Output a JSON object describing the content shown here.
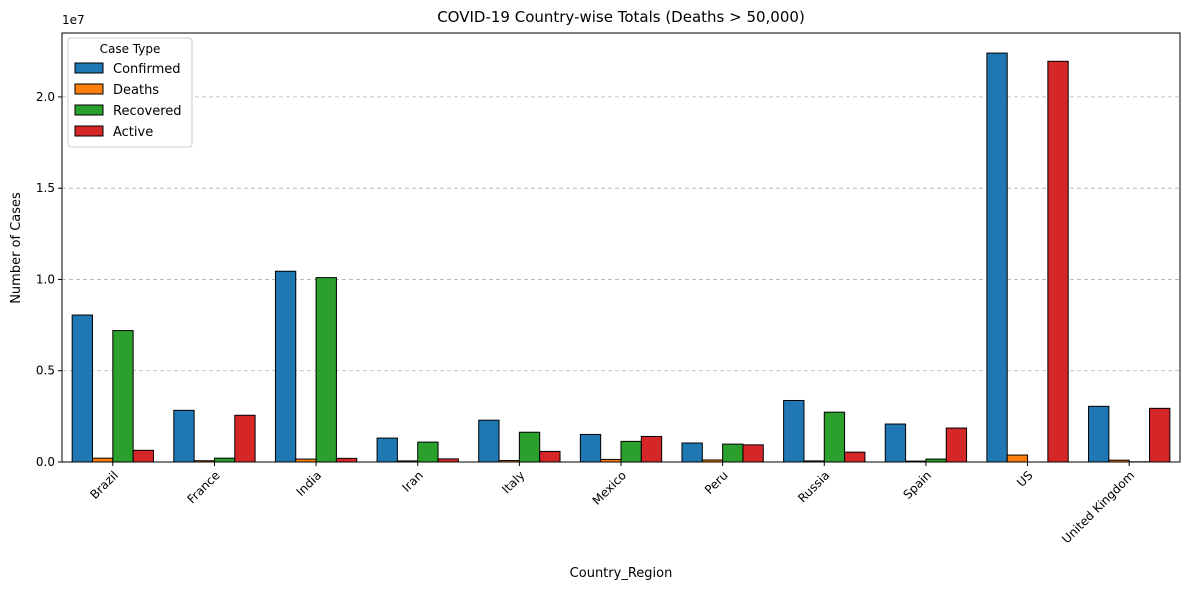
{
  "chart_data": {
    "type": "bar",
    "title": "COVID-19 Country-wise Totals (Deaths > 50,000)",
    "xlabel": "Country_Region",
    "ylabel": "Number of Cases",
    "y_offset_label": "1e7",
    "ylim": [
      0,
      23500000
    ],
    "yticks": [
      0,
      5000000,
      10000000,
      15000000,
      20000000
    ],
    "ytick_labels": [
      "0.0",
      "0.5",
      "1.0",
      "1.5",
      "2.0"
    ],
    "grid": "y",
    "legend_title": "Case Type",
    "legend_position": "top-left",
    "categories": [
      "Brazil",
      "France",
      "India",
      "Iran",
      "Italy",
      "Mexico",
      "Peru",
      "Russia",
      "Spain",
      "US",
      "United Kingdom"
    ],
    "series": [
      {
        "name": "Confirmed",
        "color": "#1f77b4",
        "values": [
          8050000,
          2830000,
          10450000,
          1310000,
          2290000,
          1510000,
          1040000,
          3370000,
          2080000,
          22400000,
          3050000
        ]
      },
      {
        "name": "Deaths",
        "color": "#ff7f0e",
        "values": [
          210000,
          70000,
          160000,
          60000,
          80000,
          140000,
          110000,
          60000,
          50000,
          380000,
          100000
        ]
      },
      {
        "name": "Recovered",
        "color": "#2ca02c",
        "values": [
          7200000,
          210000,
          10100000,
          1090000,
          1630000,
          1130000,
          980000,
          2730000,
          160000,
          0,
          10000
        ]
      },
      {
        "name": "Active",
        "color": "#d62728",
        "values": [
          640000,
          2560000,
          200000,
          170000,
          580000,
          1400000,
          940000,
          540000,
          1860000,
          21950000,
          2940000
        ]
      }
    ]
  }
}
